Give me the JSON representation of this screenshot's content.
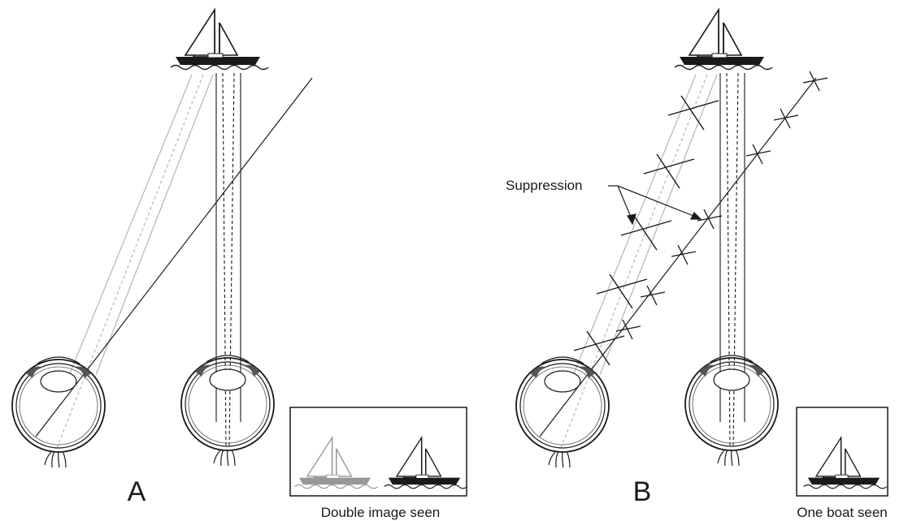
{
  "panels": [
    {
      "letter": "A",
      "caption": "Double image seen"
    },
    {
      "letter": "B",
      "caption": "One boat seen"
    }
  ],
  "annotation": {
    "suppression": "Suppression"
  },
  "colors": {
    "ink": "#1a1a1a",
    "faded": "#b5b5b5",
    "hull": "#1a1a1a"
  }
}
